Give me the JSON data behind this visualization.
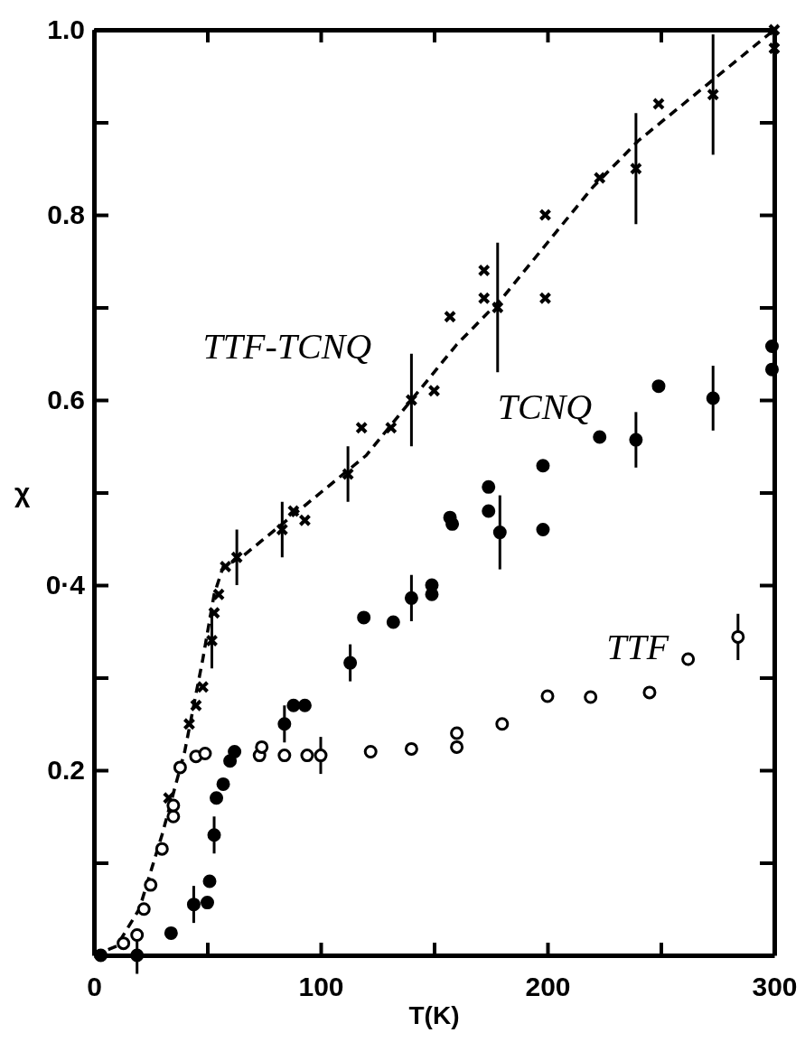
{
  "chart_data": {
    "type": "scatter",
    "xlabel": "T(K)",
    "ylabel": "χ",
    "xlim": [
      0,
      300
    ],
    "ylim": [
      0,
      1
    ],
    "xticks": [
      {
        "value": 0,
        "label": "0"
      },
      {
        "value": 50,
        "label": null
      },
      100,
      {
        "value": 150,
        "label": null
      },
      200,
      {
        "value": 250,
        "label": null
      },
      300
    ],
    "yticks": [
      {
        "value": 0.1,
        "label": null
      },
      {
        "value": 0.2,
        "label": "0.2"
      },
      {
        "value": 0.3,
        "label": null
      },
      {
        "value": 0.4,
        "label": "0·4"
      },
      {
        "value": 0.5,
        "label": null
      },
      {
        "value": 0.6,
        "label": "0.6"
      },
      {
        "value": 0.7,
        "label": null
      },
      {
        "value": 0.8,
        "label": "0.8"
      },
      {
        "value": 0.9,
        "label": null
      },
      {
        "value": 1.0,
        "label": "1.0"
      }
    ],
    "grid": false,
    "legend": false,
    "series": [
      {
        "type": "line",
        "color": "#000000",
        "line_style": "dashed",
        "marker": "none",
        "x": [
          0,
          10,
          20,
          30,
          40,
          48,
          53,
          57,
          65,
          80,
          100,
          120,
          140,
          160,
          180,
          200,
          220,
          240,
          260,
          280,
          300
        ],
        "values": [
          0,
          0.01,
          0.05,
          0.13,
          0.22,
          0.32,
          0.39,
          0.42,
          0.43,
          0.46,
          0.5,
          0.54,
          0.6,
          0.66,
          0.71,
          0.77,
          0.83,
          0.88,
          0.92,
          0.96,
          1.0
        ]
      },
      {
        "name": "TTF-TCNQ",
        "type": "scatter",
        "color": "#000000",
        "marker": "cross",
        "x": [
          33,
          42,
          45,
          48,
          52,
          53,
          55,
          58,
          63,
          83,
          88,
          93,
          112,
          118,
          131,
          140,
          150,
          157,
          172,
          172,
          178,
          199,
          199,
          223,
          239,
          249,
          273,
          300,
          300
        ],
        "values": [
          0.17,
          0.25,
          0.27,
          0.29,
          0.34,
          0.37,
          0.39,
          0.42,
          0.43,
          0.46,
          0.48,
          0.47,
          0.52,
          0.57,
          0.57,
          0.6,
          0.61,
          0.69,
          0.74,
          0.71,
          0.7,
          0.8,
          0.71,
          0.84,
          0.85,
          0.92,
          0.93,
          1.0,
          0.98
        ],
        "errors": [
          null,
          null,
          null,
          null,
          0.03,
          null,
          null,
          null,
          0.03,
          0.03,
          null,
          null,
          0.03,
          null,
          null,
          0.05,
          null,
          null,
          null,
          null,
          0.07,
          null,
          null,
          null,
          0.06,
          null,
          0.065,
          null,
          null
        ]
      },
      {
        "name": "TCNQ",
        "type": "scatter",
        "color": "#000000",
        "marker": "circle",
        "x": [
          3,
          19,
          34,
          44,
          50,
          51,
          53,
          54,
          57,
          60,
          62,
          84,
          88,
          93,
          113,
          119,
          132,
          140,
          149,
          149,
          157,
          158,
          174,
          174,
          179,
          198,
          198,
          223,
          239,
          249,
          273,
          299,
          299
        ],
        "values": [
          0,
          0,
          0.024,
          0.055,
          0.057,
          0.08,
          0.13,
          0.17,
          0.185,
          0.21,
          0.22,
          0.25,
          0.27,
          0.27,
          0.316,
          0.365,
          0.36,
          0.386,
          0.4,
          0.39,
          0.473,
          0.466,
          0.506,
          0.48,
          0.457,
          0.46,
          0.529,
          0.56,
          0.557,
          0.615,
          0.602,
          0.658,
          0.633
        ],
        "errors": [
          null,
          0.02,
          null,
          0.02,
          null,
          null,
          0.02,
          null,
          null,
          null,
          null,
          0.02,
          null,
          null,
          0.02,
          null,
          null,
          0.025,
          null,
          null,
          null,
          null,
          null,
          null,
          0.04,
          null,
          null,
          null,
          0.03,
          null,
          0.035,
          null,
          null
        ]
      },
      {
        "name": "TTF",
        "type": "scatter",
        "color": "#ffffff",
        "marker": "circle",
        "x": [
          13,
          19,
          22,
          25,
          30,
          35,
          35,
          38,
          45,
          49,
          73,
          74,
          84,
          94,
          100,
          122,
          140,
          160,
          160,
          180,
          200,
          219,
          245,
          262,
          284
        ],
        "values": [
          0.013,
          0.022,
          0.05,
          0.076,
          0.115,
          0.15,
          0.162,
          0.203,
          0.215,
          0.218,
          0.216,
          0.225,
          0.216,
          0.216,
          0.216,
          0.22,
          0.223,
          0.24,
          0.225,
          0.25,
          0.28,
          0.279,
          0.284,
          0.32,
          0.344
        ],
        "errors": [
          null,
          null,
          null,
          null,
          null,
          null,
          null,
          null,
          null,
          null,
          null,
          null,
          null,
          null,
          0.02,
          null,
          null,
          null,
          null,
          null,
          null,
          null,
          null,
          null,
          0.025
        ]
      }
    ]
  }
}
